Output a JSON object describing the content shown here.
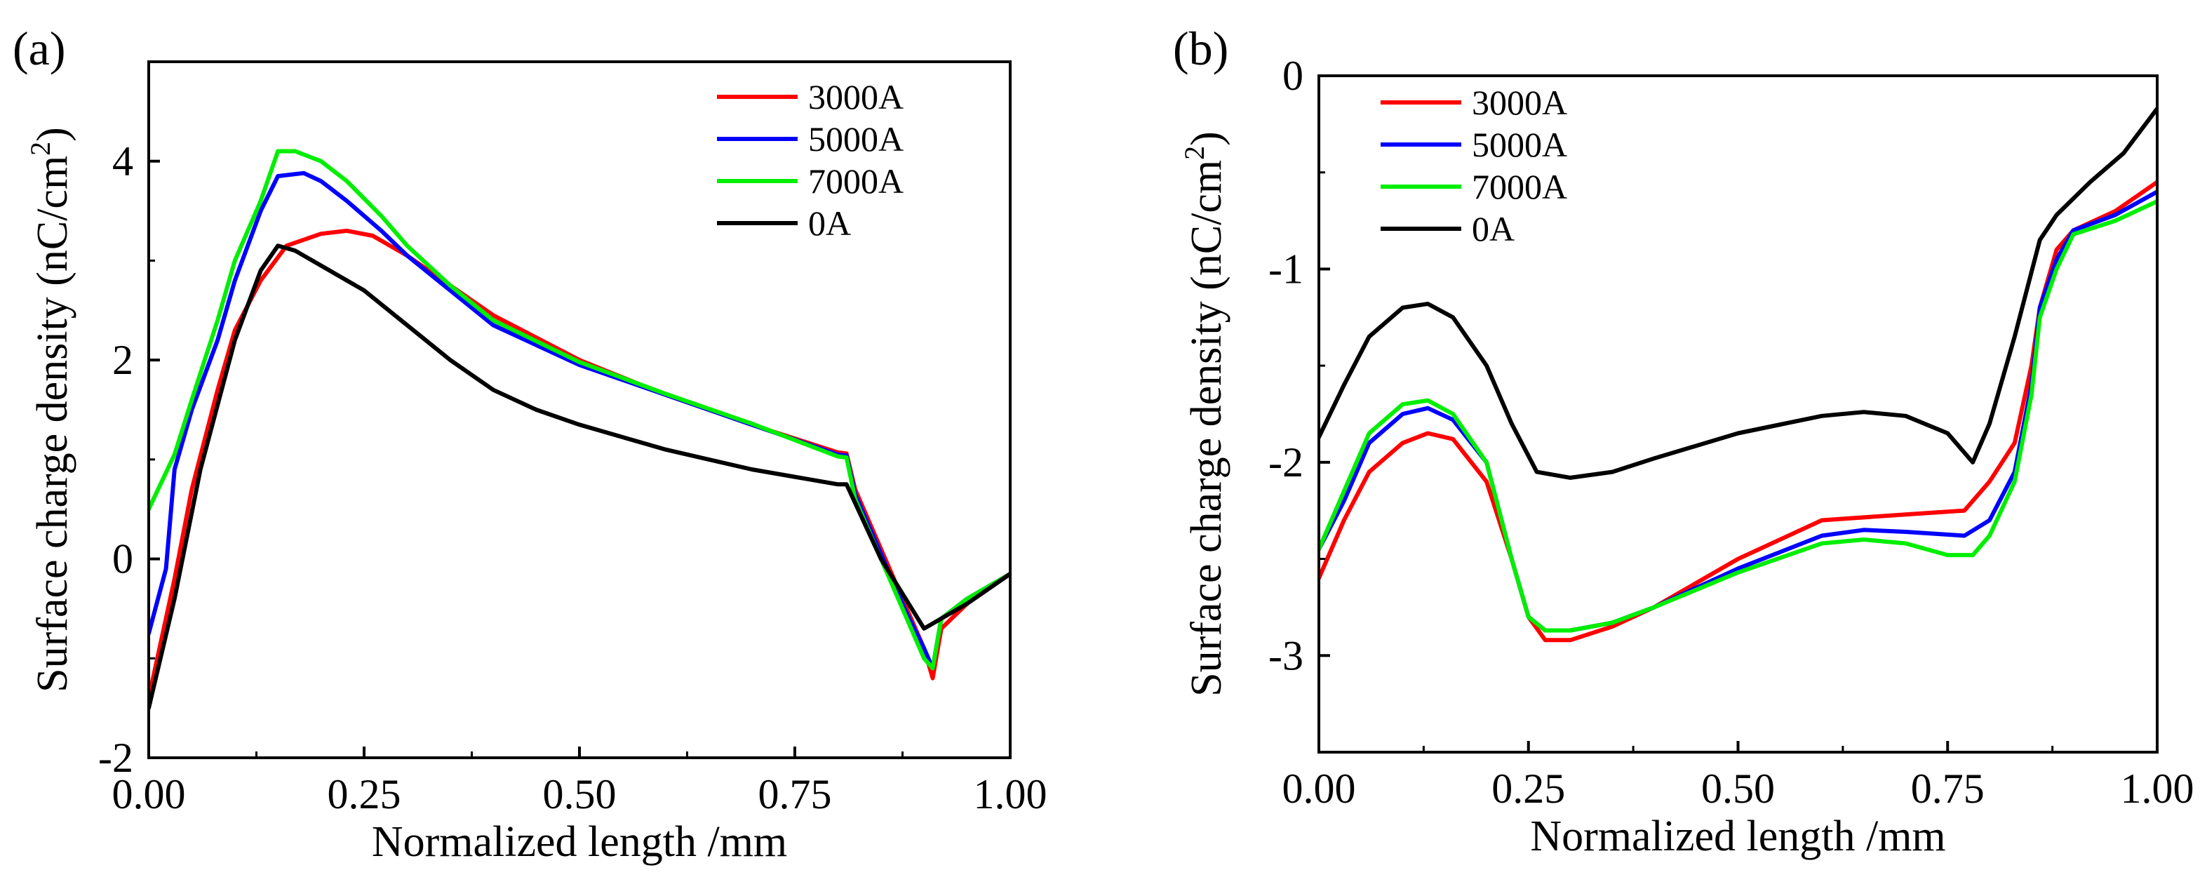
{
  "figure": {
    "panel_labels": [
      "(a)",
      "(b)"
    ]
  },
  "chart_data": [
    {
      "type": "line",
      "panel": "(a)",
      "title": "",
      "xlabel": "Normalized length /mm",
      "ylabel": "Surface charge density (nC/cm²)",
      "ylabel_parts": {
        "main": "Surface charge density (nC/cm",
        "sup": "2",
        "close": ")"
      },
      "xlim": [
        0,
        1
      ],
      "ylim": [
        -2,
        5
      ],
      "xticks": [
        0,
        0.25,
        0.5,
        0.75,
        1
      ],
      "xtick_labels": [
        "0.00",
        "0.25",
        "0.50",
        "0.75",
        "1.00"
      ],
      "yticks": [
        -2,
        0,
        2,
        4
      ],
      "ytick_labels": [
        "-2",
        "0",
        "2",
        "4"
      ],
      "legend_position": "top-right",
      "grid": false,
      "series": [
        {
          "name": "3000A",
          "color": "#ff0000",
          "x": [
            0,
            0.03,
            0.05,
            0.08,
            0.1,
            0.13,
            0.16,
            0.2,
            0.23,
            0.26,
            0.3,
            0.35,
            0.4,
            0.5,
            0.6,
            0.7,
            0.8,
            0.81,
            0.82,
            0.84,
            0.86,
            0.88,
            0.9,
            0.91,
            0.92,
            0.95,
            1.0
          ],
          "y": [
            -1.4,
            -0.2,
            0.7,
            1.7,
            2.3,
            2.8,
            3.15,
            3.27,
            3.3,
            3.25,
            3.05,
            2.75,
            2.45,
            2.0,
            1.65,
            1.35,
            1.07,
            1.06,
            0.7,
            0.3,
            -0.1,
            -0.5,
            -0.9,
            -1.2,
            -0.7,
            -0.45,
            -0.15
          ]
        },
        {
          "name": "5000A",
          "color": "#0000ff",
          "x": [
            0,
            0.02,
            0.03,
            0.05,
            0.08,
            0.1,
            0.13,
            0.15,
            0.18,
            0.2,
            0.23,
            0.27,
            0.3,
            0.35,
            0.4,
            0.5,
            0.6,
            0.7,
            0.8,
            0.81,
            0.82,
            0.84,
            0.86,
            0.88,
            0.9,
            0.91,
            0.92,
            0.95,
            1.0
          ],
          "y": [
            -0.75,
            -0.1,
            0.9,
            1.5,
            2.2,
            2.8,
            3.5,
            3.85,
            3.88,
            3.8,
            3.6,
            3.3,
            3.05,
            2.7,
            2.35,
            1.95,
            1.65,
            1.35,
            1.05,
            1.04,
            0.65,
            0.25,
            -0.15,
            -0.55,
            -0.9,
            -1.1,
            -0.6,
            -0.4,
            -0.15
          ]
        },
        {
          "name": "7000A",
          "color": "#00ee00",
          "x": [
            0,
            0.03,
            0.05,
            0.08,
            0.1,
            0.13,
            0.15,
            0.17,
            0.2,
            0.23,
            0.27,
            0.3,
            0.35,
            0.4,
            0.5,
            0.6,
            0.7,
            0.8,
            0.81,
            0.82,
            0.84,
            0.86,
            0.88,
            0.9,
            0.91,
            0.92,
            0.95,
            1.0
          ],
          "y": [
            0.5,
            1.05,
            1.6,
            2.4,
            3.0,
            3.6,
            4.1,
            4.1,
            4.0,
            3.8,
            3.45,
            3.15,
            2.75,
            2.4,
            1.98,
            1.66,
            1.36,
            1.03,
            1.02,
            0.6,
            0.2,
            -0.2,
            -0.6,
            -1.0,
            -1.1,
            -0.6,
            -0.4,
            -0.15
          ]
        },
        {
          "name": "0A",
          "color": "#000000",
          "x": [
            0,
            0.03,
            0.06,
            0.1,
            0.13,
            0.15,
            0.17,
            0.2,
            0.25,
            0.3,
            0.35,
            0.4,
            0.45,
            0.5,
            0.6,
            0.7,
            0.8,
            0.81,
            0.85,
            0.9,
            0.95,
            1.0
          ],
          "y": [
            -1.5,
            -0.4,
            0.9,
            2.2,
            2.9,
            3.15,
            3.1,
            2.95,
            2.7,
            2.35,
            2.0,
            1.7,
            1.5,
            1.35,
            1.1,
            0.9,
            0.75,
            0.75,
            0.0,
            -0.7,
            -0.45,
            -0.15
          ]
        }
      ]
    },
    {
      "type": "line",
      "panel": "(b)",
      "title": "",
      "xlabel": "Normalized length /mm",
      "ylabel": "Surface charge density (nC/cm²)",
      "ylabel_parts": {
        "main": "Surface charge density (nC/cm",
        "sup": "2",
        "close": ")"
      },
      "xlim": [
        0,
        1
      ],
      "ylim": [
        -3.5,
        0
      ],
      "xticks": [
        0,
        0.25,
        0.5,
        0.75,
        1
      ],
      "xtick_labels": [
        "0.00",
        "0.25",
        "0.50",
        "0.75",
        "1.00"
      ],
      "yticks": [
        -3,
        -2,
        -1,
        0
      ],
      "ytick_labels": [
        "-3",
        "-2",
        "-1",
        "0"
      ],
      "legend_position": "top-left",
      "grid": false,
      "series": [
        {
          "name": "3000A",
          "color": "#ff0000",
          "x": [
            0,
            0.03,
            0.06,
            0.1,
            0.13,
            0.16,
            0.2,
            0.23,
            0.25,
            0.27,
            0.3,
            0.35,
            0.4,
            0.5,
            0.6,
            0.7,
            0.77,
            0.8,
            0.83,
            0.85,
            0.86,
            0.88,
            0.9,
            0.95,
            1.0
          ],
          "y": [
            -2.6,
            -2.3,
            -2.05,
            -1.9,
            -1.85,
            -1.88,
            -2.1,
            -2.5,
            -2.8,
            -2.92,
            -2.92,
            -2.85,
            -2.75,
            -2.5,
            -2.3,
            -2.27,
            -2.25,
            -2.1,
            -1.9,
            -1.5,
            -1.2,
            -0.9,
            -0.8,
            -0.7,
            -0.55
          ]
        },
        {
          "name": "5000A",
          "color": "#0000ff",
          "x": [
            0,
            0.03,
            0.06,
            0.1,
            0.13,
            0.16,
            0.2,
            0.23,
            0.25,
            0.27,
            0.3,
            0.35,
            0.4,
            0.5,
            0.6,
            0.65,
            0.7,
            0.77,
            0.8,
            0.83,
            0.85,
            0.86,
            0.88,
            0.9,
            0.95,
            1.0
          ],
          "y": [
            -2.45,
            -2.2,
            -1.9,
            -1.75,
            -1.72,
            -1.78,
            -2.0,
            -2.5,
            -2.8,
            -2.87,
            -2.87,
            -2.83,
            -2.75,
            -2.55,
            -2.38,
            -2.35,
            -2.36,
            -2.38,
            -2.3,
            -2.05,
            -1.6,
            -1.2,
            -0.95,
            -0.8,
            -0.72,
            -0.6
          ]
        },
        {
          "name": "7000A",
          "color": "#00ee00",
          "x": [
            0,
            0.03,
            0.06,
            0.1,
            0.13,
            0.16,
            0.2,
            0.23,
            0.25,
            0.27,
            0.3,
            0.35,
            0.4,
            0.5,
            0.6,
            0.65,
            0.7,
            0.75,
            0.78,
            0.8,
            0.83,
            0.85,
            0.86,
            0.88,
            0.9,
            0.95,
            1.0
          ],
          "y": [
            -2.45,
            -2.15,
            -1.85,
            -1.7,
            -1.68,
            -1.75,
            -2.0,
            -2.5,
            -2.8,
            -2.87,
            -2.87,
            -2.83,
            -2.75,
            -2.57,
            -2.42,
            -2.4,
            -2.42,
            -2.48,
            -2.48,
            -2.38,
            -2.1,
            -1.65,
            -1.25,
            -1.0,
            -0.82,
            -0.75,
            -0.65
          ]
        },
        {
          "name": "0A",
          "color": "#000000",
          "x": [
            0,
            0.03,
            0.06,
            0.1,
            0.13,
            0.16,
            0.2,
            0.23,
            0.26,
            0.3,
            0.35,
            0.4,
            0.5,
            0.6,
            0.65,
            0.7,
            0.75,
            0.78,
            0.8,
            0.83,
            0.86,
            0.88,
            0.92,
            0.96,
            1.0
          ],
          "y": [
            -1.87,
            -1.6,
            -1.35,
            -1.2,
            -1.18,
            -1.25,
            -1.5,
            -1.8,
            -2.05,
            -2.08,
            -2.05,
            -1.98,
            -1.85,
            -1.76,
            -1.74,
            -1.76,
            -1.85,
            -2.0,
            -1.8,
            -1.35,
            -0.85,
            -0.72,
            -0.55,
            -0.4,
            -0.17
          ]
        }
      ]
    }
  ]
}
